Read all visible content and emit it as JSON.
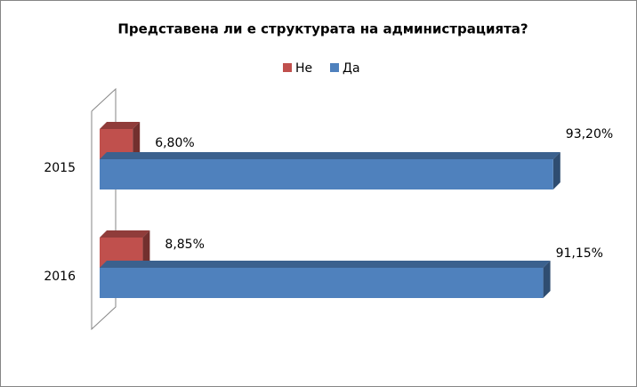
{
  "chart_data": {
    "type": "bar3d",
    "title": "Представена ли е структурата на администрацията?",
    "categories": [
      "2015",
      "2016"
    ],
    "series": [
      {
        "name": "Не",
        "color": "#c0504d",
        "values": [
          6.8,
          8.85
        ],
        "value_labels": [
          "6,80%",
          "8,85%"
        ]
      },
      {
        "name": "Да",
        "color": "#4f81bd",
        "values": [
          93.2,
          91.15
        ],
        "value_labels": [
          "93,20%",
          "91,15%"
        ]
      }
    ],
    "xlim": [
      0,
      100
    ]
  }
}
